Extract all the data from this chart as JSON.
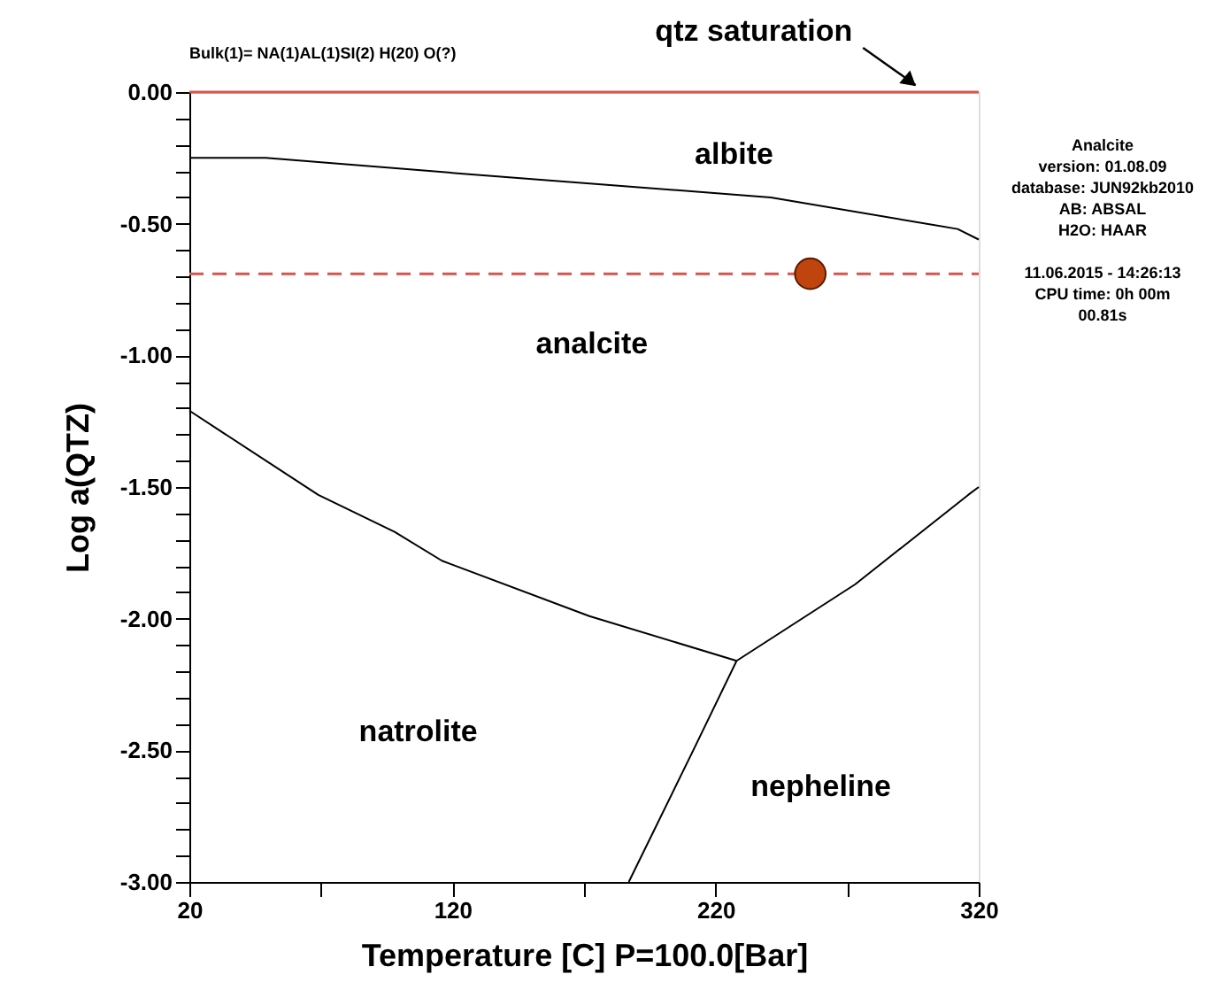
{
  "chart_data": {
    "type": "line",
    "title": "Analcite",
    "subtitle": "Bulk(1)= NA(1)AL(1)SI(2) H(20) O(?)",
    "xlabel": "Temperature [C] P=100.0[Bar]",
    "ylabel": "Log a(QTZ)",
    "xlim": [
      20,
      320
    ],
    "ylim": [
      -3,
      0
    ],
    "xticks": [
      20,
      {
        "value": 70,
        "label": null
      },
      120,
      {
        "value": 170,
        "label": null
      },
      220,
      {
        "value": 270,
        "label": null
      },
      320
    ],
    "yticks": [
      {
        "value": 0,
        "label": "0.00"
      },
      {
        "value": -0.1,
        "label": null
      },
      {
        "value": -0.2,
        "label": null
      },
      {
        "value": -0.3,
        "label": null
      },
      {
        "value": -0.4,
        "label": null
      },
      {
        "value": -0.5,
        "label": "-0.50"
      },
      {
        "value": -0.6,
        "label": null
      },
      {
        "value": -0.7,
        "label": null
      },
      {
        "value": -0.8,
        "label": null
      },
      {
        "value": -0.9,
        "label": null
      },
      {
        "value": -1.0,
        "label": "-1.00"
      },
      {
        "value": -1.1,
        "label": null
      },
      {
        "value": -1.2,
        "label": null
      },
      {
        "value": -1.3,
        "label": null
      },
      {
        "value": -1.4,
        "label": null
      },
      {
        "value": -1.5,
        "label": "-1.50"
      },
      {
        "value": -1.6,
        "label": null
      },
      {
        "value": -1.7,
        "label": null
      },
      {
        "value": -1.8,
        "label": null
      },
      {
        "value": -1.9,
        "label": null
      },
      {
        "value": -2.0,
        "label": "-2.00"
      },
      {
        "value": -2.1,
        "label": null
      },
      {
        "value": -2.2,
        "label": null
      },
      {
        "value": -2.3,
        "label": null
      },
      {
        "value": -2.4,
        "label": null
      },
      {
        "value": -2.5,
        "label": "-2.50"
      },
      {
        "value": -2.6,
        "label": null
      },
      {
        "value": -2.7,
        "label": null
      },
      {
        "value": -2.8,
        "label": null
      },
      {
        "value": -2.9,
        "label": null
      },
      {
        "value": -3.0,
        "label": "-3.00"
      }
    ],
    "grid": false,
    "line_style": "solid",
    "series": [
      {
        "color": "#000000",
        "x": [
          20,
          49,
          124,
          241,
          312,
          320
        ],
        "values": [
          -0.25,
          -0.25,
          -0.31,
          -0.4,
          -0.52,
          -0.56
        ]
      },
      {
        "color": "#000000",
        "x": [
          20,
          69,
          98,
          116,
          172,
          228
        ],
        "values": [
          -1.21,
          -1.53,
          -1.67,
          -1.78,
          -1.99,
          -2.16
        ]
      },
      {
        "color": "#000000",
        "x": [
          228,
          273,
          316,
          320
        ],
        "values": [
          -2.16,
          -1.87,
          -1.53,
          -1.5
        ]
      },
      {
        "color": "#000000",
        "x": [
          228,
          212,
          187
        ],
        "values": [
          -2.16,
          -2.49,
          -3.0
        ]
      },
      {
        "type": "scatter",
        "color": "#c0440e",
        "marker": "circle",
        "x": [
          256
        ],
        "values": [
          -0.69
        ]
      }
    ],
    "ref_lines": [
      {
        "axis": "y",
        "value": 0,
        "label": "qtz saturation",
        "color": "#d9534f",
        "line_style": "solid"
      },
      {
        "axis": "y",
        "value": -0.69,
        "color": "#d9534f",
        "line_style": "dashed"
      }
    ],
    "annotations": [
      "albite",
      "analcite",
      "natrolite",
      "nepheline",
      "version: 01.08.09",
      "database: JUN92kb2010",
      "AB: ABSAL",
      "H2O: HAAR",
      "11.06.2015 - 14:26:13",
      "CPU time:    0h 00m",
      "00.81s"
    ]
  }
}
